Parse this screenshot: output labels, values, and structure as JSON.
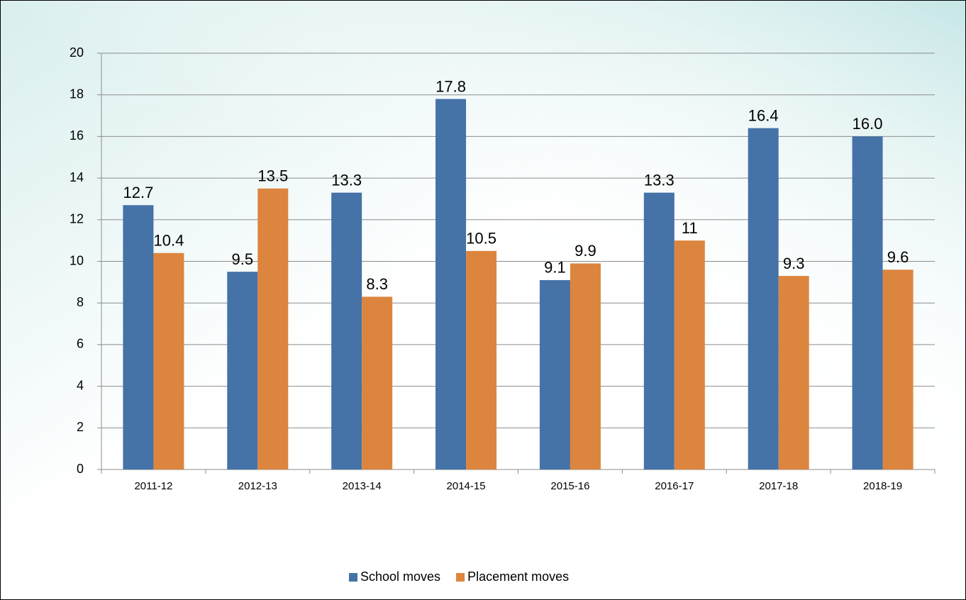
{
  "chart_data": {
    "type": "bar",
    "categories": [
      "2011-12",
      "2012-13",
      "2013-14",
      "2014-15",
      "2015-16",
      "2016-17",
      "2017-18",
      "2018-19"
    ],
    "series": [
      {
        "name": "School moves",
        "color": "#4572a7",
        "values": [
          12.7,
          9.5,
          13.3,
          17.8,
          9.1,
          13.3,
          16.4,
          16.0
        ],
        "value_labels": [
          "12.7",
          "9.5",
          "13.3",
          "17.8",
          "9.1",
          "13.3",
          "16.4",
          "16.0"
        ]
      },
      {
        "name": "Placement moves",
        "color": "#dc853e",
        "values": [
          10.4,
          13.5,
          8.3,
          10.5,
          9.9,
          11,
          9.3,
          9.6
        ]
      }
    ],
    "ylim": [
      0,
      20
    ],
    "yticks": [
      0,
      2,
      4,
      6,
      8,
      10,
      12,
      14,
      16,
      18,
      20
    ],
    "grid": true,
    "legend": "bottom"
  }
}
